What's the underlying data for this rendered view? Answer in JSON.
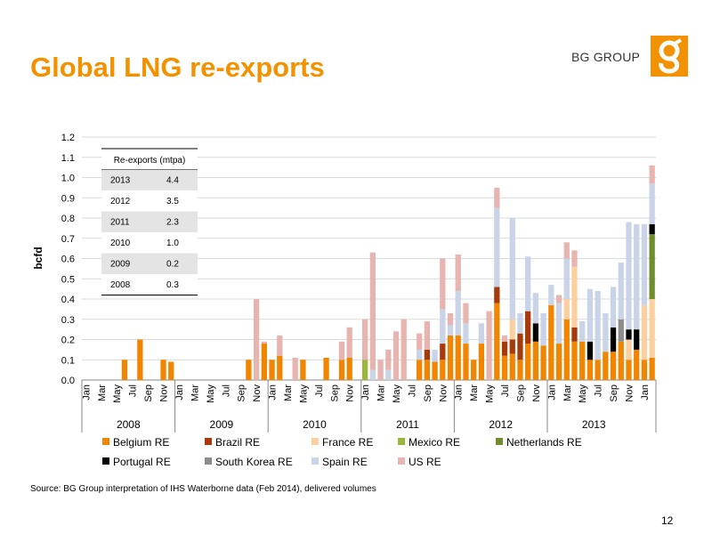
{
  "header": {
    "title": "Global LNG re-exports",
    "brand": "BG GROUP",
    "logo_letter": "g"
  },
  "footer": {
    "source": "Source: BG Group interpretation of IHS Waterborne data (Feb 2014), delivered volumes",
    "page_number": "12"
  },
  "colors": {
    "Belgium RE": "#f28500",
    "Brazil RE": "#a63a0a",
    "France RE": "#fccf9f",
    "Mexico RE": "#9ab73a",
    "Netherlands RE": "#6e8d2d",
    "Portugal RE": "#000000",
    "South Korea RE": "#8c8c8c",
    "Spain RE": "#c9d4e8",
    "US RE": "#e8b4b0",
    "brand": "#f39200"
  },
  "chart_data": {
    "type": "bar",
    "stacked": true,
    "ylabel": "bcfd",
    "ylim": [
      0,
      1.2
    ],
    "yticks": [
      "0.0",
      "0.1",
      "0.2",
      "0.3",
      "0.4",
      "0.5",
      "0.6",
      "0.7",
      "0.8",
      "0.9",
      "1.0",
      "1.1",
      "1.2"
    ],
    "grid": true,
    "legend_position": "bottom",
    "month_labels": [
      "Jan",
      "Mar",
      "May",
      "Jul",
      "Sep",
      "Nov"
    ],
    "years": [
      "2008",
      "2009",
      "2010",
      "2011",
      "2012",
      "2013"
    ],
    "series_names": [
      "Belgium RE",
      "Brazil RE",
      "France RE",
      "Mexico RE",
      "Netherlands RE",
      "Portugal RE",
      "South Korea RE",
      "Spain RE",
      "US RE"
    ],
    "series": [
      {
        "name": "Belgium RE",
        "values": [
          0,
          0,
          0,
          0,
          0,
          0.1,
          0,
          0.2,
          0,
          0,
          0.1,
          0.09,
          0,
          0,
          0,
          0,
          0,
          0,
          0,
          0,
          0,
          0.1,
          0,
          0.18,
          0.1,
          0.12,
          0,
          0,
          0.1,
          0,
          0,
          0.11,
          0,
          0.1,
          0.11,
          0,
          0,
          0,
          0,
          0,
          0,
          0,
          0,
          0.1,
          0.1,
          0.09,
          0.1,
          0.22,
          0.22,
          0.18,
          0.1,
          0.18,
          0,
          0.38,
          0.12,
          0.13,
          0.1,
          0.18,
          0.19,
          0.17,
          0.37,
          0.18,
          0.3,
          0.19,
          0.19,
          0.1,
          0.1,
          0.14,
          0.14,
          0.19,
          0.1,
          0.15,
          0.1,
          0.11
        ]
      },
      {
        "name": "Brazil RE",
        "values": [
          0,
          0,
          0,
          0,
          0,
          0,
          0,
          0,
          0,
          0,
          0,
          0,
          0,
          0,
          0,
          0,
          0,
          0,
          0,
          0,
          0,
          0,
          0,
          0,
          0,
          0,
          0,
          0,
          0,
          0,
          0,
          0,
          0,
          0,
          0,
          0,
          0,
          0,
          0,
          0,
          0,
          0,
          0,
          0,
          0.05,
          0,
          0.08,
          0,
          0,
          0,
          0,
          0,
          0,
          0.08,
          0.07,
          0.07,
          0.13,
          0.16,
          0,
          0,
          0,
          0,
          0,
          0.07,
          0,
          0,
          0,
          0,
          0,
          0,
          0,
          0,
          0,
          0
        ]
      },
      {
        "name": "France RE",
        "values": [
          0,
          0,
          0,
          0,
          0,
          0,
          0,
          0,
          0,
          0,
          0,
          0,
          0,
          0,
          0,
          0,
          0,
          0,
          0,
          0,
          0,
          0,
          0,
          0,
          0,
          0,
          0,
          0,
          0,
          0,
          0,
          0,
          0,
          0,
          0,
          0,
          0,
          0,
          0,
          0,
          0,
          0,
          0,
          0,
          0,
          0,
          0,
          0,
          0,
          0,
          0,
          0,
          0,
          0,
          0,
          0.1,
          0,
          0,
          0,
          0,
          0,
          0,
          0.1,
          0.3,
          0,
          0,
          0,
          0,
          0,
          0,
          0.1,
          0,
          0.27,
          0.29
        ]
      },
      {
        "name": "Mexico RE",
        "values": [
          0,
          0,
          0,
          0,
          0,
          0,
          0,
          0,
          0,
          0,
          0,
          0,
          0,
          0,
          0,
          0,
          0,
          0,
          0,
          0,
          0,
          0,
          0,
          0,
          0,
          0,
          0,
          0,
          0,
          0,
          0,
          0,
          0,
          0,
          0,
          0,
          0.1,
          0,
          0,
          0,
          0,
          0,
          0,
          0,
          0,
          0,
          0,
          0,
          0,
          0,
          0,
          0,
          0,
          0,
          0,
          0,
          0,
          0,
          0,
          0,
          0,
          0,
          0,
          0,
          0,
          0,
          0,
          0,
          0,
          0,
          0,
          0,
          0,
          0
        ]
      },
      {
        "name": "Netherlands RE",
        "values": [
          0,
          0,
          0,
          0,
          0,
          0,
          0,
          0,
          0,
          0,
          0,
          0,
          0,
          0,
          0,
          0,
          0,
          0,
          0,
          0,
          0,
          0,
          0,
          0,
          0,
          0,
          0,
          0,
          0,
          0,
          0,
          0,
          0,
          0,
          0,
          0,
          0,
          0,
          0,
          0,
          0,
          0,
          0,
          0,
          0,
          0,
          0,
          0,
          0,
          0,
          0,
          0,
          0,
          0,
          0,
          0,
          0,
          0,
          0,
          0,
          0,
          0,
          0,
          0,
          0,
          0,
          0,
          0,
          0,
          0,
          0,
          0,
          0,
          0.32
        ]
      },
      {
        "name": "Portugal RE",
        "values": [
          0,
          0,
          0,
          0,
          0,
          0,
          0,
          0,
          0,
          0,
          0,
          0,
          0,
          0,
          0,
          0,
          0,
          0,
          0,
          0,
          0,
          0,
          0,
          0,
          0,
          0,
          0,
          0,
          0,
          0,
          0,
          0,
          0,
          0,
          0,
          0,
          0,
          0,
          0,
          0,
          0,
          0,
          0,
          0,
          0,
          0,
          0,
          0,
          0,
          0,
          0,
          0,
          0,
          0,
          0,
          0,
          0,
          0,
          0.09,
          0,
          0,
          0,
          0,
          0,
          0,
          0.09,
          0,
          0,
          0.12,
          0,
          0.05,
          0.1,
          0,
          0.05
        ]
      },
      {
        "name": "South Korea RE",
        "values": [
          0,
          0,
          0,
          0,
          0,
          0,
          0,
          0,
          0,
          0,
          0,
          0,
          0,
          0,
          0,
          0,
          0,
          0,
          0,
          0,
          0,
          0,
          0,
          0,
          0,
          0,
          0,
          0,
          0,
          0,
          0,
          0,
          0,
          0,
          0,
          0,
          0,
          0,
          0,
          0,
          0,
          0,
          0,
          0,
          0,
          0,
          0,
          0,
          0,
          0,
          0,
          0,
          0,
          0,
          0,
          0,
          0,
          0,
          0,
          0,
          0,
          0,
          0,
          0,
          0,
          0,
          0,
          0,
          0,
          0.11,
          0,
          0,
          0,
          0
        ]
      },
      {
        "name": "Spain RE",
        "values": [
          0,
          0,
          0,
          0,
          0,
          0,
          0,
          0,
          0,
          0,
          0,
          0,
          0,
          0,
          0,
          0,
          0,
          0,
          0,
          0,
          0,
          0,
          0,
          0,
          0,
          0,
          0,
          0,
          0,
          0,
          0,
          0,
          0,
          0,
          0,
          0,
          0,
          0.05,
          0,
          0.05,
          0,
          0,
          0,
          0.05,
          0,
          0.06,
          0.17,
          0.05,
          0.22,
          0.1,
          0,
          0.1,
          0,
          0.39,
          0,
          0.5,
          0.1,
          0.27,
          0.15,
          0.16,
          0.1,
          0.2,
          0.2,
          0,
          0.1,
          0.26,
          0.34,
          0.19,
          0.2,
          0.28,
          0.53,
          0.52,
          0.4,
          0.2
        ]
      },
      {
        "name": "US RE",
        "values": [
          0,
          0,
          0,
          0,
          0,
          0,
          0,
          0,
          0,
          0,
          0,
          0,
          0,
          0,
          0,
          0,
          0,
          0,
          0,
          0,
          0,
          0,
          0.4,
          0.01,
          0,
          0.1,
          0,
          0.11,
          0,
          0,
          0,
          0,
          0,
          0.09,
          0.15,
          0,
          0.2,
          0.58,
          0.1,
          0.1,
          0.24,
          0.3,
          0,
          0.08,
          0.14,
          0,
          0.25,
          0.06,
          0.18,
          0.1,
          0,
          0,
          0.34,
          0.1,
          0.03,
          0,
          0,
          0,
          0,
          0,
          0,
          0.04,
          0.08,
          0.08,
          0,
          0,
          0,
          0,
          0,
          0,
          0,
          0,
          0,
          0.09
        ]
      }
    ],
    "table": {
      "title": "Re-exports (mtpa)",
      "rows": [
        {
          "year": "2013",
          "value": "4.4"
        },
        {
          "year": "2012",
          "value": "3.5"
        },
        {
          "year": "2011",
          "value": "2.3"
        },
        {
          "year": "2010",
          "value": "1.0"
        },
        {
          "year": "2009",
          "value": "0.2"
        },
        {
          "year": "2008",
          "value": "0.3"
        }
      ]
    }
  }
}
